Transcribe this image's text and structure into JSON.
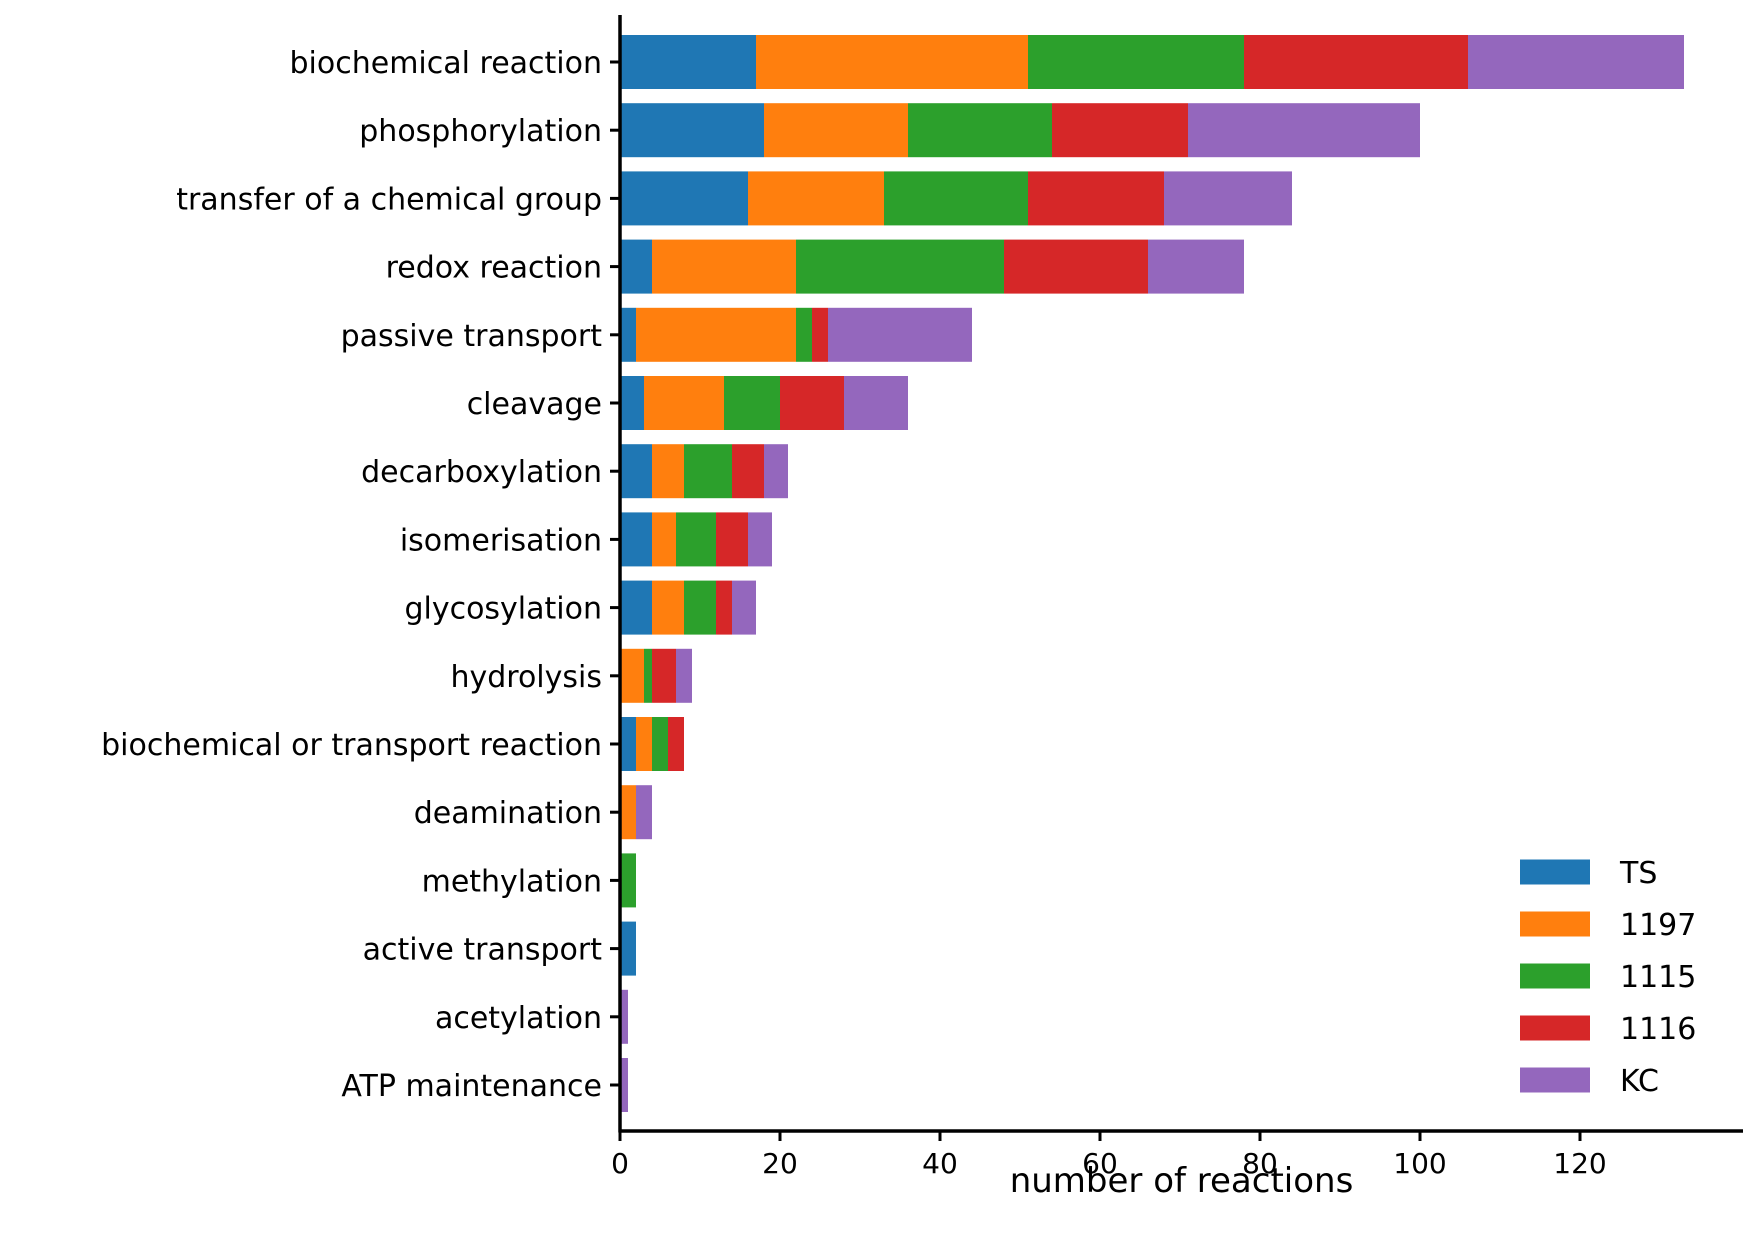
{
  "chart_data": {
    "type": "bar",
    "orientation": "horizontal",
    "stacked": true,
    "title": "",
    "xlabel": "number of reactions",
    "ylabel": "",
    "xlim": [
      0,
      140
    ],
    "xticks": [
      0,
      20,
      40,
      60,
      80,
      100,
      120
    ],
    "grid": false,
    "legend_position": "lower-right",
    "categories": [
      "biochemical reaction",
      "phosphorylation",
      "transfer of a chemical group",
      "redox reaction",
      "passive transport",
      "cleavage",
      "decarboxylation",
      "isomerisation",
      "glycosylation",
      "hydrolysis",
      "biochemical or transport reaction",
      "deamination",
      "methylation",
      "active transport",
      "acetylation",
      "ATP maintenance"
    ],
    "series": [
      {
        "name": "TS",
        "color": "#1f77b4",
        "values": [
          17,
          18,
          16,
          4,
          2,
          3,
          4,
          4,
          4,
          0,
          2,
          0,
          0,
          2,
          0,
          0
        ]
      },
      {
        "name": "1197",
        "color": "#ff7f0e",
        "values": [
          34,
          18,
          17,
          18,
          20,
          10,
          4,
          3,
          4,
          3,
          2,
          2,
          0,
          0,
          0,
          0
        ]
      },
      {
        "name": "1115",
        "color": "#2ca02c",
        "values": [
          27,
          18,
          18,
          26,
          2,
          7,
          6,
          5,
          4,
          1,
          2,
          0,
          2,
          0,
          0,
          0
        ]
      },
      {
        "name": "1116",
        "color": "#d62728",
        "values": [
          28,
          17,
          17,
          18,
          2,
          8,
          4,
          4,
          2,
          3,
          2,
          0,
          0,
          0,
          0,
          0
        ]
      },
      {
        "name": "KC",
        "color": "#9467bd",
        "values": [
          27,
          29,
          16,
          12,
          18,
          8,
          3,
          3,
          3,
          2,
          0,
          2,
          0,
          0,
          1,
          1
        ]
      }
    ]
  }
}
